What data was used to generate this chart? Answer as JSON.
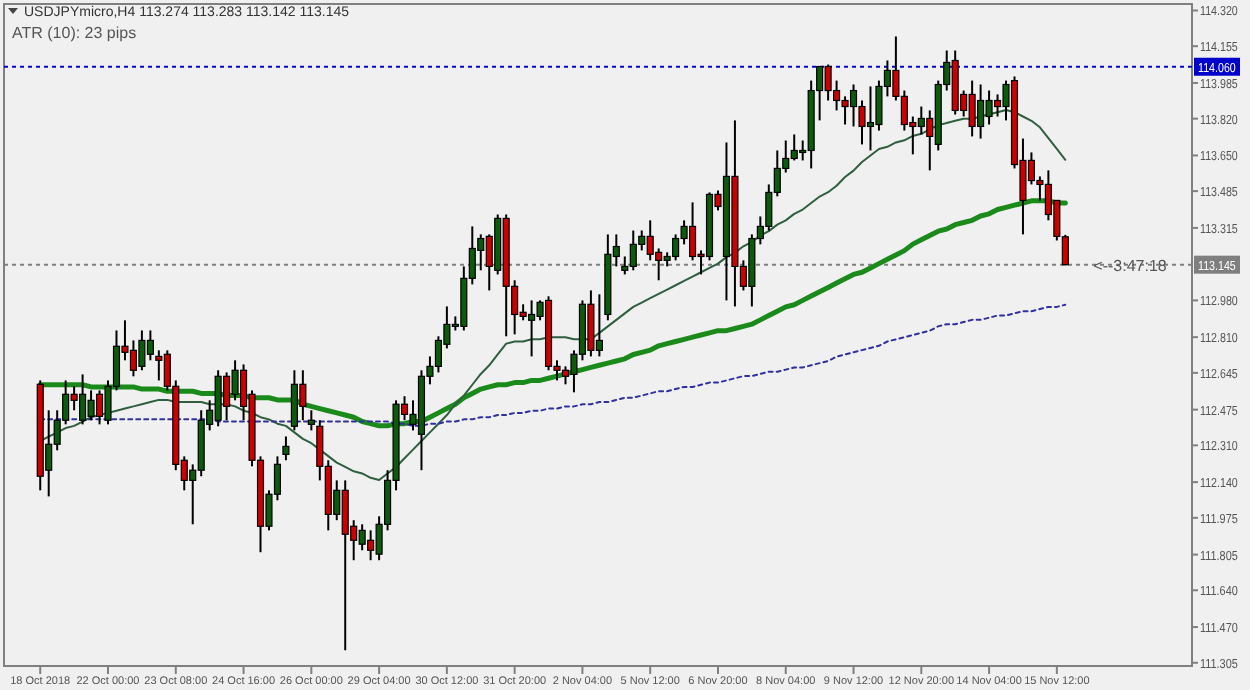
{
  "chart_data": {
    "type": "candlestick",
    "title": "USDJPYmicro,H4  113.274 113.283 113.142 113.145",
    "annotations": [
      "ATR (10): 23 pips",
      "<--3:47:18"
    ],
    "categories": [
      "18 Oct 2018",
      null,
      null,
      null,
      null,
      null,
      null,
      null,
      "22 Oct 00:00",
      null,
      null,
      null,
      null,
      null,
      null,
      null,
      "23 Oct 08:00",
      null,
      null,
      null,
      null,
      null,
      null,
      null,
      "24 Oct 16:00",
      null,
      null,
      null,
      null,
      null,
      null,
      null,
      "26 Oct 00:00",
      null,
      null,
      null,
      null,
      null,
      null,
      null,
      "29 Oct 04:00",
      null,
      null,
      null,
      null,
      null,
      null,
      null,
      "30 Oct 12:00",
      null,
      null,
      null,
      null,
      null,
      null,
      null,
      "31 Oct 20:00",
      null,
      null,
      null,
      null,
      null,
      null,
      null,
      "2 Nov 04:00",
      null,
      null,
      null,
      null,
      null,
      null,
      null,
      "5 Nov 12:00",
      null,
      null,
      null,
      null,
      null,
      null,
      null,
      "6 Nov 20:00",
      null,
      null,
      null,
      null,
      null,
      null,
      null,
      "8 Nov 04:00",
      null,
      null,
      null,
      null,
      null,
      null,
      null,
      "9 Nov 12:00",
      null,
      null,
      null,
      null,
      null,
      null,
      null,
      "12 Nov 20:00",
      null,
      null,
      null,
      null,
      null,
      null,
      null,
      "14 Nov 04:00",
      null,
      null,
      null,
      null,
      null,
      null,
      null,
      "15 Nov 12:00",
      null
    ],
    "ylim": [
      111.29,
      114.35
    ],
    "yticks": [
      {
        "value": 114.32,
        "label": "114.320"
      },
      {
        "value": 114.155,
        "label": "114.155"
      },
      {
        "value": 113.985,
        "label": "113.985"
      },
      {
        "value": 113.82,
        "label": "113.820"
      },
      {
        "value": 113.65,
        "label": "113.650"
      },
      {
        "value": 113.485,
        "label": "113.485"
      },
      {
        "value": 113.315,
        "label": "113.315"
      },
      {
        "value": 112.98,
        "label": "112.980"
      },
      {
        "value": 112.81,
        "label": "112.810"
      },
      {
        "value": 112.645,
        "label": "112.645"
      },
      {
        "value": 112.475,
        "label": "112.475"
      },
      {
        "value": 112.31,
        "label": "112.310"
      },
      {
        "value": 112.14,
        "label": "112.140"
      },
      {
        "value": 111.975,
        "label": "111.975"
      },
      {
        "value": 111.805,
        "label": "111.805"
      },
      {
        "value": 111.64,
        "label": "111.640"
      },
      {
        "value": 111.47,
        "label": "111.470"
      },
      {
        "value": 111.305,
        "label": "111.305"
      }
    ],
    "ref_lines": [
      {
        "axis": "y",
        "value": 114.06,
        "label": "114.060",
        "color": "#0000cc",
        "line_style": "dotted"
      },
      {
        "axis": "y",
        "value": 113.145,
        "label": "113.145",
        "color": "#7f7f7f",
        "line_style": "dotted"
      }
    ],
    "series": [
      {
        "type": "line",
        "color": "#1a8a1a",
        "values": [
          112.59,
          112.59,
          112.59,
          112.59,
          112.59,
          112.59,
          112.58,
          112.58,
          112.58,
          112.58,
          112.58,
          112.58,
          112.57,
          112.57,
          112.57,
          112.56,
          112.56,
          112.56,
          112.56,
          112.55,
          112.55,
          112.55,
          112.54,
          112.54,
          112.54,
          112.53,
          112.53,
          112.53,
          112.52,
          112.52,
          112.52,
          112.5,
          112.49,
          112.48,
          112.47,
          112.46,
          112.45,
          112.44,
          112.42,
          112.41,
          112.4,
          112.4,
          112.41,
          112.41,
          112.42,
          112.42,
          112.44,
          112.46,
          112.48,
          112.5,
          112.53,
          112.55,
          112.57,
          112.58,
          112.59,
          112.59,
          112.6,
          112.6,
          112.61,
          112.61,
          112.62,
          112.63,
          112.64,
          112.65,
          112.66,
          112.67,
          112.68,
          112.69,
          112.7,
          112.71,
          112.73,
          112.74,
          112.75,
          112.77,
          112.78,
          112.79,
          112.8,
          112.81,
          112.82,
          112.83,
          112.84,
          112.84,
          112.85,
          112.86,
          112.87,
          112.89,
          112.91,
          112.93,
          112.95,
          112.96,
          112.98,
          113.0,
          113.02,
          113.04,
          113.06,
          113.08,
          113.1,
          113.11,
          113.13,
          113.15,
          113.17,
          113.19,
          113.21,
          113.24,
          113.26,
          113.28,
          113.3,
          113.31,
          113.33,
          113.34,
          113.35,
          113.37,
          113.38,
          113.4,
          113.41,
          113.42,
          113.43,
          113.44,
          113.44,
          113.44,
          113.43,
          113.43
        ]
      },
      {
        "type": "line",
        "color": "#2f5f3f",
        "values": [
          112.33,
          112.35,
          112.37,
          112.39,
          112.4,
          112.42,
          112.44,
          112.45,
          112.46,
          112.47,
          112.48,
          112.49,
          112.5,
          112.51,
          112.52,
          112.52,
          112.51,
          112.51,
          112.51,
          112.51,
          112.5,
          112.5,
          112.5,
          112.49,
          112.47,
          112.46,
          112.44,
          112.43,
          112.41,
          112.4,
          112.37,
          112.34,
          112.32,
          112.29,
          112.26,
          112.23,
          112.21,
          112.19,
          112.18,
          112.16,
          112.15,
          112.18,
          112.21,
          112.25,
          112.29,
          112.33,
          112.37,
          112.41,
          112.45,
          112.5,
          112.54,
          112.59,
          112.64,
          112.68,
          112.73,
          112.78,
          112.79,
          112.79,
          112.8,
          112.8,
          112.81,
          112.81,
          112.81,
          112.8,
          112.8,
          112.8,
          112.83,
          112.86,
          112.89,
          112.92,
          112.95,
          112.97,
          112.99,
          113.01,
          113.03,
          113.05,
          113.07,
          113.09,
          113.11,
          113.13,
          113.15,
          113.18,
          113.2,
          113.23,
          113.25,
          113.28,
          113.3,
          113.33,
          113.35,
          113.38,
          113.4,
          113.43,
          113.46,
          113.48,
          113.51,
          113.55,
          113.58,
          113.62,
          113.65,
          113.68,
          113.69,
          113.71,
          113.72,
          113.74,
          113.75,
          113.77,
          113.79,
          113.8,
          113.81,
          113.82,
          113.82,
          113.83,
          113.84,
          113.85,
          113.86,
          113.85,
          113.83,
          113.81,
          113.78,
          113.73,
          113.68,
          113.63
        ]
      },
      {
        "type": "line",
        "color": "#3030a0",
        "line_style": "dotted",
        "values": [
          112.43,
          112.43,
          112.43,
          112.43,
          112.43,
          112.43,
          112.43,
          112.43,
          112.43,
          112.43,
          112.43,
          112.43,
          112.43,
          112.43,
          112.43,
          112.43,
          112.43,
          112.43,
          112.43,
          112.43,
          112.43,
          112.42,
          112.42,
          112.42,
          112.42,
          112.42,
          112.42,
          112.42,
          112.42,
          112.42,
          112.42,
          112.42,
          112.42,
          112.42,
          112.42,
          112.42,
          112.42,
          112.42,
          112.42,
          112.42,
          112.42,
          112.42,
          112.41,
          112.41,
          112.4,
          112.4,
          112.41,
          112.41,
          112.42,
          112.42,
          112.43,
          112.43,
          112.44,
          112.44,
          112.45,
          112.45,
          112.46,
          112.46,
          112.47,
          112.47,
          112.48,
          112.48,
          112.49,
          112.49,
          112.5,
          112.5,
          112.51,
          112.51,
          112.52,
          112.53,
          112.53,
          112.54,
          112.55,
          112.56,
          112.56,
          112.57,
          112.58,
          112.58,
          112.59,
          112.6,
          112.6,
          112.61,
          112.62,
          112.63,
          112.63,
          112.64,
          112.65,
          112.65,
          112.66,
          112.67,
          112.67,
          112.68,
          112.69,
          112.7,
          112.72,
          112.73,
          112.74,
          112.75,
          112.76,
          112.77,
          112.79,
          112.8,
          112.81,
          112.82,
          112.83,
          112.84,
          112.86,
          112.87,
          112.87,
          112.88,
          112.89,
          112.89,
          112.9,
          112.91,
          112.91,
          112.92,
          112.93,
          112.93,
          112.94,
          112.95,
          112.95,
          112.96
        ]
      },
      {
        "colors": [
          "#cc0000",
          "#0c5a0c",
          "#0c5a0c",
          "#0c5a0c",
          "#cc0000",
          "#0c5a0c",
          "#0c5a0c",
          "#cc0000",
          "#0c5a0c",
          "#0c5a0c",
          "#cc0000",
          "#cc0000",
          "#0c5a0c",
          "#0c5a0c",
          "#cc0000",
          "#cc0000",
          "#cc0000",
          "#cc0000",
          "#0c5a0c",
          "#0c5a0c",
          "#0c5a0c",
          "#0c5a0c",
          "#cc0000",
          "#0c5a0c",
          "#cc0000",
          "#cc0000",
          "#cc0000",
          "#0c5a0c",
          "#0c5a0c",
          "#0c5a0c",
          "#0c5a0c",
          "#cc0000",
          "#0c5a0c",
          "#cc0000",
          "#cc0000",
          "#0c5a0c",
          "#cc0000",
          "#cc0000",
          "#0c5a0c",
          "#cc0000",
          "#0c5a0c",
          "#0c5a0c",
          "#0c5a0c",
          "#cc0000",
          "#0c5a0c",
          "#0c5a0c",
          "#0c5a0c",
          "#0c5a0c",
          "#0c5a0c",
          "#0c5a0c",
          "#0c5a0c",
          "#0c5a0c",
          "#0c5a0c",
          "#cc0000",
          "#0c5a0c",
          "#cc0000",
          "#cc0000",
          "#cc0000",
          "#0c5a0c",
          "#0c5a0c",
          "#cc0000",
          "#cc0000",
          "#cc0000",
          "#0c5a0c",
          "#0c5a0c",
          "#cc0000",
          "#0c5a0c",
          "#0c5a0c",
          "#0c5a0c",
          "#0c5a0c",
          "#0c5a0c",
          "#0c5a0c",
          "#cc0000",
          "#cc0000",
          "#0c5a0c",
          "#0c5a0c",
          "#0c5a0c",
          "#cc0000",
          "#cc0000",
          "#0c5a0c",
          "#cc0000",
          "#0c5a0c",
          "#cc0000",
          "#cc0000",
          "#0c5a0c",
          "#0c5a0c",
          "#0c5a0c",
          "#0c5a0c",
          "#0c5a0c",
          "#0c5a0c",
          "#0c5a0c",
          "#0c5a0c",
          "#0c5a0c",
          "#cc0000",
          "#cc0000",
          "#cc0000",
          "#0c5a0c",
          "#cc0000",
          "#0c5a0c",
          "#0c5a0c",
          "#0c5a0c",
          "#cc0000",
          "#cc0000",
          "#cc0000",
          "#0c5a0c",
          "#cc0000",
          "#0c5a0c",
          "#0c5a0c",
          "#cc0000",
          "#cc0000",
          "#cc0000",
          "#0c5a0c",
          "#0c5a0c",
          "#cc0000",
          "#0c5a0c",
          "#cc0000",
          "#cc0000",
          "#cc0000",
          "#cc0000",
          "#cc0000",
          "#cc0000",
          "#cc0000"
        ],
        "ohlc": [
          [
            112.592,
            112.61,
            112.102,
            112.167
          ],
          [
            112.195,
            112.472,
            112.074,
            112.315
          ],
          [
            112.315,
            112.472,
            112.287,
            112.426
          ],
          [
            112.426,
            112.61,
            112.407,
            112.546
          ],
          [
            112.546,
            112.583,
            112.472,
            112.518
          ],
          [
            112.426,
            112.638,
            112.407,
            112.546
          ],
          [
            112.444,
            112.564,
            112.426,
            112.518
          ],
          [
            112.546,
            112.564,
            112.407,
            112.444
          ],
          [
            112.426,
            112.61,
            112.407,
            112.583
          ],
          [
            112.583,
            112.841,
            112.564,
            112.768
          ],
          [
            112.768,
            112.888,
            112.703,
            112.74
          ],
          [
            112.749,
            112.795,
            112.629,
            112.657
          ],
          [
            112.675,
            112.841,
            112.657,
            112.795
          ],
          [
            112.731,
            112.841,
            112.703,
            112.795
          ],
          [
            112.721,
            112.749,
            112.61,
            112.703
          ],
          [
            112.731,
            112.749,
            112.564,
            112.583
          ],
          [
            112.583,
            112.61,
            112.195,
            112.222
          ],
          [
            112.241,
            112.259,
            112.102,
            112.148
          ],
          [
            112.148,
            112.222,
            111.945,
            112.195
          ],
          [
            112.195,
            112.472,
            112.167,
            112.426
          ],
          [
            112.407,
            112.518,
            112.379,
            112.472
          ],
          [
            112.426,
            112.657,
            112.398,
            112.629
          ],
          [
            112.629,
            112.647,
            112.426,
            112.49
          ],
          [
            112.546,
            112.703,
            112.518,
            112.657
          ],
          [
            112.657,
            112.684,
            112.426,
            112.49
          ],
          [
            112.546,
            112.564,
            112.213,
            112.241
          ],
          [
            112.241,
            112.259,
            111.816,
            111.936
          ],
          [
            111.936,
            112.102,
            111.917,
            112.084
          ],
          [
            112.084,
            112.259,
            112.056,
            112.222
          ],
          [
            112.268,
            112.351,
            112.241,
            112.305
          ],
          [
            112.398,
            112.657,
            112.379,
            112.592
          ],
          [
            112.592,
            112.657,
            112.426,
            112.49
          ],
          [
            112.407,
            112.472,
            112.379,
            112.426
          ],
          [
            112.398,
            112.426,
            112.148,
            112.213
          ],
          [
            112.213,
            112.241,
            111.917,
            111.991
          ],
          [
            111.991,
            112.148,
            111.964,
            112.102
          ],
          [
            112.102,
            112.148,
            111.363,
            111.899
          ],
          [
            111.936,
            111.964,
            111.779,
            111.871
          ],
          [
            111.853,
            111.945,
            111.825,
            111.917
          ],
          [
            111.871,
            111.917,
            111.779,
            111.825
          ],
          [
            111.807,
            111.982,
            111.779,
            111.945
          ],
          [
            111.945,
            112.195,
            111.917,
            112.148
          ],
          [
            112.148,
            112.518,
            112.102,
            112.5
          ],
          [
            112.5,
            112.537,
            112.426,
            112.453
          ],
          [
            112.407,
            112.518,
            112.379,
            112.453
          ],
          [
            112.361,
            112.657,
            112.195,
            112.629
          ],
          [
            112.629,
            112.721,
            112.592,
            112.675
          ],
          [
            112.675,
            112.814,
            112.647,
            112.795
          ],
          [
            112.777,
            112.952,
            112.758,
            112.869
          ],
          [
            112.86,
            112.906,
            112.841,
            112.869
          ],
          [
            112.86,
            113.137,
            112.841,
            113.082
          ],
          [
            113.082,
            113.322,
            113.054,
            113.22
          ],
          [
            113.211,
            113.285,
            113.119,
            113.266
          ],
          [
            113.276,
            113.285,
            113.026,
            113.137
          ],
          [
            113.119,
            113.377,
            113.1,
            113.359
          ],
          [
            113.359,
            113.377,
            112.814,
            113.045
          ],
          [
            113.045,
            113.073,
            112.823,
            112.915
          ],
          [
            112.925,
            112.962,
            112.888,
            112.906
          ],
          [
            112.888,
            112.98,
            112.721,
            112.915
          ],
          [
            112.906,
            112.98,
            112.888,
            112.971
          ],
          [
            112.98,
            112.999,
            112.657,
            112.675
          ],
          [
            112.675,
            112.703,
            112.61,
            112.657
          ],
          [
            112.657,
            112.675,
            112.592,
            112.629
          ],
          [
            112.638,
            112.749,
            112.555,
            112.731
          ],
          [
            112.731,
            112.98,
            112.703,
            112.962
          ],
          [
            112.962,
            113.026,
            112.721,
            112.749
          ],
          [
            112.749,
            113.008,
            112.721,
            112.795
          ],
          [
            112.915,
            113.285,
            112.888,
            113.193
          ],
          [
            113.183,
            113.285,
            113.137,
            113.229
          ],
          [
            113.119,
            113.183,
            113.1,
            113.137
          ],
          [
            113.137,
            113.303,
            113.119,
            113.239
          ],
          [
            113.239,
            113.303,
            113.211,
            113.276
          ],
          [
            113.276,
            113.35,
            113.165,
            113.193
          ],
          [
            113.202,
            113.22,
            113.073,
            113.165
          ],
          [
            113.165,
            113.202,
            113.137,
            113.183
          ],
          [
            113.183,
            113.285,
            113.165,
            113.266
          ],
          [
            113.266,
            113.35,
            113.239,
            113.322
          ],
          [
            113.322,
            113.433,
            113.165,
            113.183
          ],
          [
            113.193,
            113.211,
            113.1,
            113.183
          ],
          [
            113.183,
            113.479,
            113.165,
            113.47
          ],
          [
            113.47,
            113.488,
            113.396,
            113.414
          ],
          [
            113.183,
            113.71,
            112.98,
            113.553
          ],
          [
            113.553,
            113.812,
            112.952,
            113.137
          ],
          [
            113.137,
            113.165,
            113.026,
            113.045
          ],
          [
            113.045,
            113.285,
            112.952,
            113.266
          ],
          [
            113.266,
            113.368,
            113.239,
            113.322
          ],
          [
            113.322,
            113.516,
            113.303,
            113.479
          ],
          [
            113.479,
            113.673,
            113.461,
            113.59
          ],
          [
            113.59,
            113.719,
            113.571,
            113.636
          ],
          [
            113.636,
            113.747,
            113.627,
            113.673
          ],
          [
            113.664,
            113.719,
            113.627,
            113.673
          ],
          [
            113.673,
            113.996,
            113.59,
            113.95
          ],
          [
            113.95,
            114.061,
            113.812,
            114.061
          ],
          [
            114.061,
            114.07,
            113.904,
            113.95
          ],
          [
            113.95,
            113.996,
            113.858,
            113.904
          ],
          [
            113.904,
            113.923,
            113.793,
            113.876
          ],
          [
            113.876,
            113.978,
            113.784,
            113.95
          ],
          [
            113.876,
            113.904,
            113.701,
            113.784
          ],
          [
            113.784,
            113.969,
            113.673,
            113.802
          ],
          [
            113.793,
            113.996,
            113.765,
            113.969
          ],
          [
            113.969,
            114.089,
            113.923,
            114.043
          ],
          [
            114.043,
            114.2,
            113.904,
            113.923
          ],
          [
            113.923,
            113.95,
            113.765,
            113.793
          ],
          [
            113.802,
            113.83,
            113.655,
            113.784
          ],
          [
            113.784,
            113.876,
            113.747,
            113.821
          ],
          [
            113.821,
            113.858,
            113.581,
            113.738
          ],
          [
            113.701,
            113.996,
            113.673,
            113.978
          ],
          [
            113.978,
            114.135,
            113.95,
            114.08
          ],
          [
            114.089,
            114.135,
            113.839,
            113.858
          ],
          [
            113.932,
            113.95,
            113.83,
            113.858
          ],
          [
            113.932,
            113.996,
            113.738,
            113.784
          ],
          [
            113.784,
            113.978,
            113.728,
            113.904
          ],
          [
            113.83,
            113.95,
            113.793,
            113.904
          ],
          [
            113.904,
            113.932,
            113.83,
            113.876
          ],
          [
            113.876,
            113.996,
            113.812,
            113.978
          ],
          [
            113.996,
            114.015,
            113.59,
            113.608
          ],
          [
            113.627,
            113.728,
            113.285,
            113.442
          ],
          [
            113.627,
            113.664,
            113.516,
            113.534
          ],
          [
            113.534,
            113.553,
            113.442,
            113.516
          ],
          [
            113.516,
            113.581,
            113.35,
            113.377
          ],
          [
            113.442,
            113.442,
            113.257,
            113.276
          ],
          [
            113.274,
            113.283,
            113.142,
            113.145
          ]
        ]
      }
    ]
  }
}
